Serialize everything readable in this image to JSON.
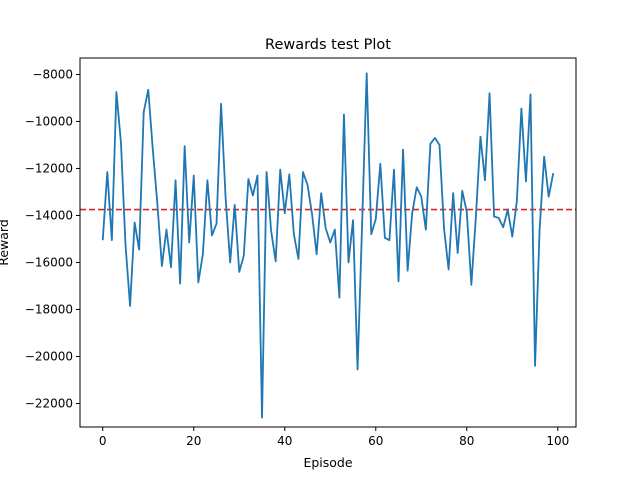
{
  "chart_data": {
    "type": "line",
    "title": "Rewards test Plot",
    "xlabel": "Episode",
    "ylabel": "Reward",
    "xlim": [
      -5,
      104
    ],
    "ylim": [
      -23000,
      -7300
    ],
    "xticks": [
      0,
      20,
      40,
      60,
      80,
      100
    ],
    "yticks": [
      -22000,
      -20000,
      -18000,
      -16000,
      -14000,
      -12000,
      -10000,
      -8000
    ],
    "xtick_labels": [
      "0",
      "20",
      "40",
      "60",
      "80",
      "100"
    ],
    "ytick_labels": [
      "−22000",
      "−20000",
      "−18000",
      "−16000",
      "−14000",
      "−12000",
      "−10000",
      "−8000"
    ],
    "grid": false,
    "series": [
      {
        "color": "#1f77b4",
        "style": "solid",
        "x": [
          0,
          1,
          2,
          3,
          4,
          5,
          6,
          7,
          8,
          9,
          10,
          11,
          12,
          13,
          14,
          15,
          16,
          17,
          18,
          19,
          20,
          21,
          22,
          23,
          24,
          25,
          26,
          27,
          28,
          29,
          30,
          31,
          32,
          33,
          34,
          35,
          36,
          37,
          38,
          39,
          40,
          41,
          42,
          43,
          44,
          45,
          46,
          47,
          48,
          49,
          50,
          51,
          52,
          53,
          54,
          55,
          56,
          57,
          58,
          59,
          60,
          61,
          62,
          63,
          64,
          65,
          66,
          67,
          68,
          69,
          70,
          71,
          72,
          73,
          74,
          75,
          76,
          77,
          78,
          79,
          80,
          81,
          82,
          83,
          84,
          85,
          86,
          87,
          88,
          89,
          90,
          91,
          92,
          93,
          94,
          95,
          96,
          97,
          98,
          99
        ],
        "values": [
          -15050,
          -12150,
          -15050,
          -8750,
          -10900,
          -15250,
          -17850,
          -14300,
          -15450,
          -9600,
          -8650,
          -11200,
          -13500,
          -16150,
          -14600,
          -16200,
          -12500,
          -16900,
          -11050,
          -15150,
          -12300,
          -16850,
          -15650,
          -12500,
          -14850,
          -14350,
          -9250,
          -13250,
          -16000,
          -13550,
          -16400,
          -15700,
          -12450,
          -13150,
          -12300,
          -22600,
          -12150,
          -14650,
          -15950,
          -12050,
          -13900,
          -12250,
          -14800,
          -15850,
          -12150,
          -12700,
          -13950,
          -15650,
          -13050,
          -14550,
          -15150,
          -14600,
          -17500,
          -9700,
          -16000,
          -14200,
          -20550,
          -14350,
          -7950,
          -14800,
          -14150,
          -11800,
          -14950,
          -15050,
          -12050,
          -16800,
          -11200,
          -16350,
          -13900,
          -12800,
          -13200,
          -14600,
          -10950,
          -10700,
          -11000,
          -14550,
          -16300,
          -13050,
          -15600,
          -12950,
          -13850,
          -16950,
          -14050,
          -10650,
          -12500,
          -8800,
          -14050,
          -14100,
          -14500,
          -13750,
          -14900,
          -13400,
          -9450,
          -12550,
          -8850,
          -20400,
          -14600,
          -11500,
          -13200,
          -12200
        ]
      }
    ],
    "reference_lines": [
      {
        "orientation": "horizontal",
        "y": -13750,
        "color": "#d62728",
        "style": "dashed"
      }
    ]
  }
}
